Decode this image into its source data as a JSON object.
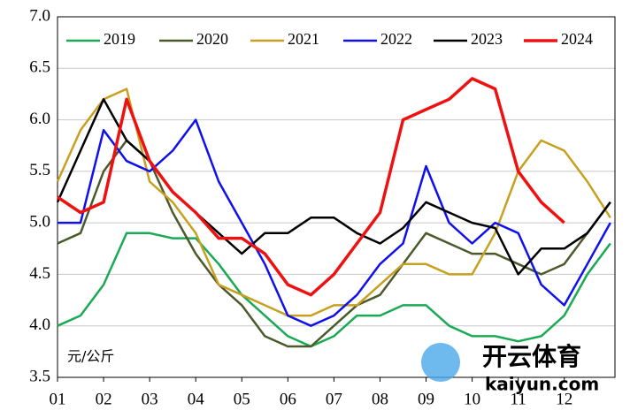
{
  "chart_data": {
    "type": "line",
    "y_unit": "元/公斤",
    "annotations": [
      "开云体育",
      "kaiyun.com"
    ],
    "x": [
      1,
      1.5,
      2,
      2.5,
      3,
      3.5,
      4,
      4.5,
      5,
      5.5,
      6,
      6.5,
      7,
      7.5,
      8,
      8.5,
      9,
      9.5,
      10,
      10.5,
      11,
      11.5,
      12,
      12.5,
      13
    ],
    "xlim": [
      1,
      13.1
    ],
    "xticks": [
      {
        "value": 1,
        "label": "01"
      },
      {
        "value": 2,
        "label": "02"
      },
      {
        "value": 3,
        "label": "03"
      },
      {
        "value": 4,
        "label": "04"
      },
      {
        "value": 5,
        "label": "05"
      },
      {
        "value": 6,
        "label": "06"
      },
      {
        "value": 7,
        "label": "07"
      },
      {
        "value": 8,
        "label": "08"
      },
      {
        "value": 9,
        "label": "09"
      },
      {
        "value": 10,
        "label": "10"
      },
      {
        "value": 11,
        "label": "11"
      },
      {
        "value": 12,
        "label": "12"
      }
    ],
    "ylim": [
      3.5,
      7.0
    ],
    "yticks": [
      {
        "value": 3.5,
        "label": "3.5"
      },
      {
        "value": 4,
        "label": "4.0"
      },
      {
        "value": 4.5,
        "label": "4.5"
      },
      {
        "value": 5,
        "label": "5.0"
      },
      {
        "value": 5.5,
        "label": "5.5"
      },
      {
        "value": 6,
        "label": "6.0"
      },
      {
        "value": 6.5,
        "label": "6.5"
      },
      {
        "value": 7,
        "label": "7.0"
      }
    ],
    "grid": true,
    "legend": "top",
    "series": [
      {
        "name": "2019",
        "color": "#1aaa55",
        "values": [
          4.0,
          4.1,
          4.4,
          4.9,
          4.9,
          4.85,
          4.85,
          4.6,
          4.3,
          4.1,
          3.9,
          3.8,
          3.9,
          4.1,
          4.1,
          4.2,
          4.2,
          4.0,
          3.9,
          3.9,
          3.85,
          3.9,
          4.1,
          4.5,
          4.8
        ]
      },
      {
        "name": "2020",
        "color": "#4a5a2a",
        "values": [
          4.8,
          4.9,
          5.5,
          5.8,
          5.6,
          5.1,
          4.7,
          4.4,
          4.2,
          3.9,
          3.8,
          3.8,
          4.0,
          4.2,
          4.3,
          4.6,
          4.9,
          4.8,
          4.7,
          4.7,
          4.6,
          4.5,
          4.6,
          4.9,
          5.2
        ]
      },
      {
        "name": "2021",
        "color": "#c8a020",
        "values": [
          5.4,
          5.9,
          6.2,
          6.3,
          5.4,
          5.2,
          4.9,
          4.4,
          4.3,
          4.2,
          4.1,
          4.1,
          4.2,
          4.2,
          4.4,
          4.6,
          4.6,
          4.5,
          4.5,
          4.9,
          5.5,
          5.8,
          5.7,
          5.4,
          5.05
        ]
      },
      {
        "name": "2022",
        "color": "#1010ee",
        "values": [
          5.0,
          5.0,
          5.9,
          5.6,
          5.5,
          5.7,
          6.0,
          5.4,
          5.0,
          4.6,
          4.1,
          4.0,
          4.1,
          4.3,
          4.6,
          4.8,
          5.55,
          5.0,
          4.8,
          5.0,
          4.9,
          4.4,
          4.2,
          4.6,
          5.0
        ]
      },
      {
        "name": "2023",
        "color": "#000000",
        "values": [
          5.2,
          5.7,
          6.2,
          5.8,
          5.6,
          5.3,
          5.1,
          4.9,
          4.7,
          4.9,
          4.9,
          5.05,
          5.05,
          4.9,
          4.8,
          4.95,
          5.2,
          5.1,
          5.0,
          4.95,
          4.5,
          4.75,
          4.75,
          4.9,
          5.2
        ]
      },
      {
        "name": "2024",
        "color": "#ee1111",
        "values": [
          5.25,
          5.1,
          5.2,
          6.2,
          5.6,
          5.3,
          5.1,
          4.85,
          4.85,
          4.7,
          4.4,
          4.3,
          4.5,
          4.8,
          5.1,
          6.0,
          6.1,
          6.2,
          6.4,
          6.3,
          5.5,
          5.2,
          5.0,
          null,
          null
        ]
      }
    ]
  }
}
